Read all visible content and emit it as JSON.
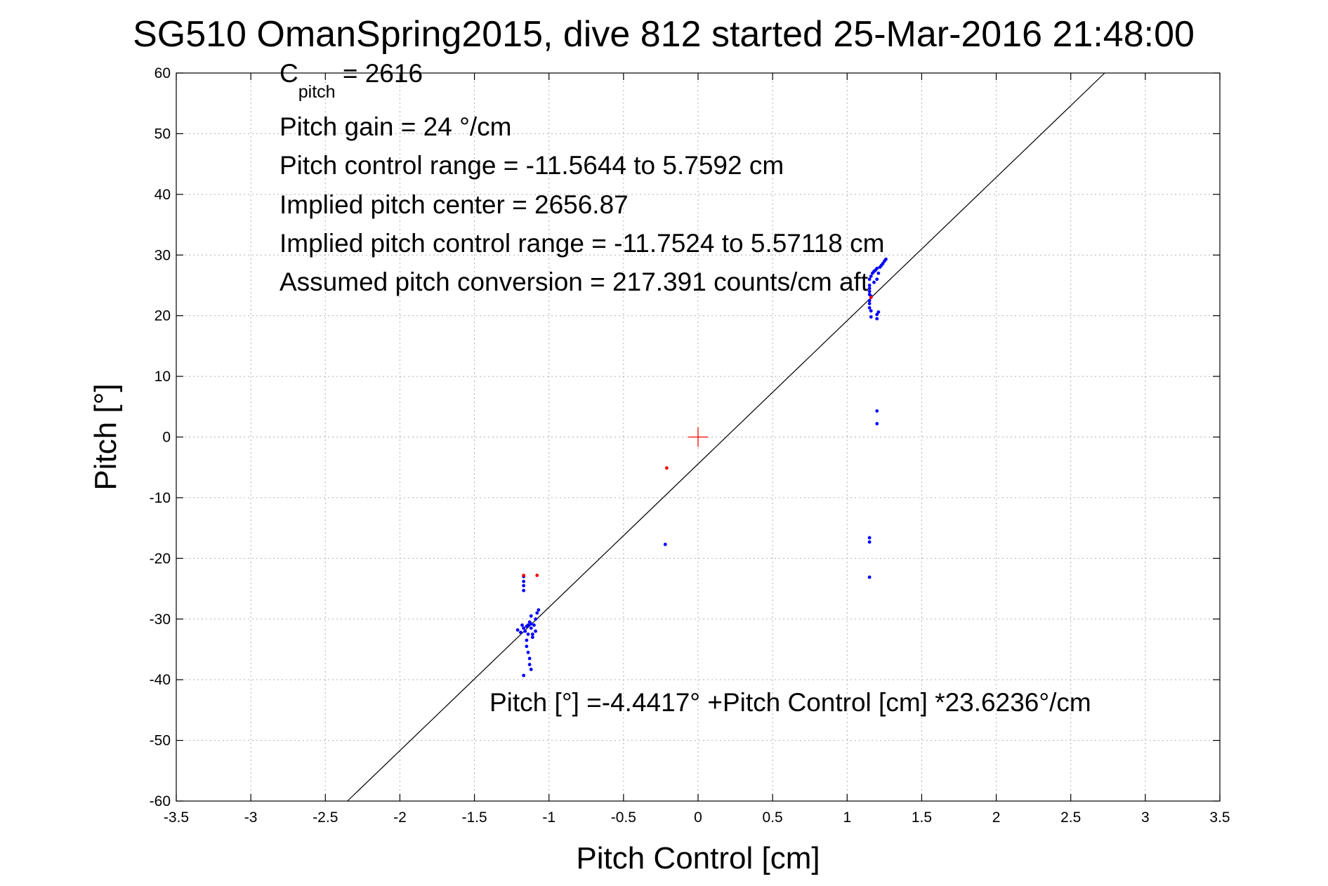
{
  "chart_data": {
    "type": "scatter",
    "title": "SG510 OmanSpring2015, dive 812 started 25-Mar-2016 21:48:00",
    "xlabel": "Pitch Control [cm]",
    "ylabel": "Pitch [°]",
    "xlim": [
      -3.5,
      3.5
    ],
    "ylim": [
      -60,
      60
    ],
    "xticks": [
      -3.5,
      -3,
      -2.5,
      -2,
      -1.5,
      -1,
      -0.5,
      0,
      0.5,
      1,
      1.5,
      2,
      2.5,
      3,
      3.5
    ],
    "yticks": [
      -60,
      -50,
      -40,
      -30,
      -20,
      -10,
      0,
      10,
      20,
      30,
      40,
      50,
      60
    ],
    "grid": true,
    "colors": {
      "series_blue": "#0000ff",
      "series_red": "#ff0000",
      "fit_line": "#000000",
      "center_marker": "#ff0000"
    },
    "fit_line": {
      "intercept": -4.4417,
      "slope": 23.6236
    },
    "center_marker": {
      "x": 0,
      "y": 0
    },
    "series": [
      {
        "color": "#0000ff",
        "points": [
          [
            -1.17,
            -23.0
          ],
          [
            -1.17,
            -23.8
          ],
          [
            -1.17,
            -24.5
          ],
          [
            -1.17,
            -25.3
          ],
          [
            -1.18,
            -31.0
          ],
          [
            -1.17,
            -31.5
          ],
          [
            -1.16,
            -32.0
          ],
          [
            -1.15,
            -31.2
          ],
          [
            -1.19,
            -32.2
          ],
          [
            -1.21,
            -31.8
          ],
          [
            -1.14,
            -31.0
          ],
          [
            -1.13,
            -30.5
          ],
          [
            -1.12,
            -29.5
          ],
          [
            -1.12,
            -30.8
          ],
          [
            -1.12,
            -31.5
          ],
          [
            -1.11,
            -32.5
          ],
          [
            -1.1,
            -31.0
          ],
          [
            -1.09,
            -32.0
          ],
          [
            -1.09,
            -30.0
          ],
          [
            -1.08,
            -29.0
          ],
          [
            -1.07,
            -28.5
          ],
          [
            -1.15,
            -33.5
          ],
          [
            -1.15,
            -34.5
          ],
          [
            -1.14,
            -35.5
          ],
          [
            -1.13,
            -36.5
          ],
          [
            -1.13,
            -37.5
          ],
          [
            -1.12,
            -38.3
          ],
          [
            -1.17,
            -39.3
          ],
          [
            -1.11,
            -33.0
          ],
          [
            -1.14,
            -32.5
          ],
          [
            -0.22,
            -17.7
          ],
          [
            1.15,
            26.0
          ],
          [
            1.16,
            26.5
          ],
          [
            1.17,
            27.0
          ],
          [
            1.18,
            27.3
          ],
          [
            1.19,
            27.5
          ],
          [
            1.2,
            27.8
          ],
          [
            1.22,
            28.0
          ],
          [
            1.23,
            28.3
          ],
          [
            1.24,
            28.6
          ],
          [
            1.25,
            29.0
          ],
          [
            1.26,
            29.3
          ],
          [
            1.15,
            25.0
          ],
          [
            1.15,
            24.5
          ],
          [
            1.15,
            24.0
          ],
          [
            1.15,
            23.5
          ],
          [
            1.16,
            23.2
          ],
          [
            1.15,
            22.5
          ],
          [
            1.15,
            22.0
          ],
          [
            1.15,
            21.3
          ],
          [
            1.16,
            20.8
          ],
          [
            1.16,
            19.8
          ],
          [
            1.2,
            20.2
          ],
          [
            1.2,
            19.5
          ],
          [
            1.21,
            20.6
          ],
          [
            1.18,
            25.5
          ],
          [
            1.2,
            26.0
          ],
          [
            1.21,
            27.0
          ],
          [
            1.2,
            4.3
          ],
          [
            1.2,
            2.2
          ],
          [
            1.15,
            -16.6
          ],
          [
            1.15,
            -17.3
          ],
          [
            1.15,
            -23.1
          ]
        ]
      },
      {
        "color": "#ff0000",
        "points": [
          [
            -1.17,
            -22.8
          ],
          [
            -1.08,
            -22.8
          ],
          [
            -0.21,
            -5.1
          ],
          [
            1.16,
            23.0
          ]
        ]
      }
    ],
    "annotations": {
      "c_pitch_main": "C",
      "c_pitch_sub": "pitch",
      "c_pitch_value": " = 2616",
      "pitch_gain": "Pitch gain = 24 °/cm",
      "pitch_control_range": "Pitch control range = -11.5644 to 5.7592 cm",
      "implied_pitch_center": "Implied pitch center = 2656.87",
      "implied_pitch_control_range": "Implied pitch control range = -11.7524 to 5.57118 cm",
      "assumed_pitch_conversion": "Assumed pitch conversion = 217.391 counts/cm aft",
      "fit_equation": "Pitch [°] =-4.4417° +Pitch Control [cm] *23.6236°/cm"
    }
  }
}
